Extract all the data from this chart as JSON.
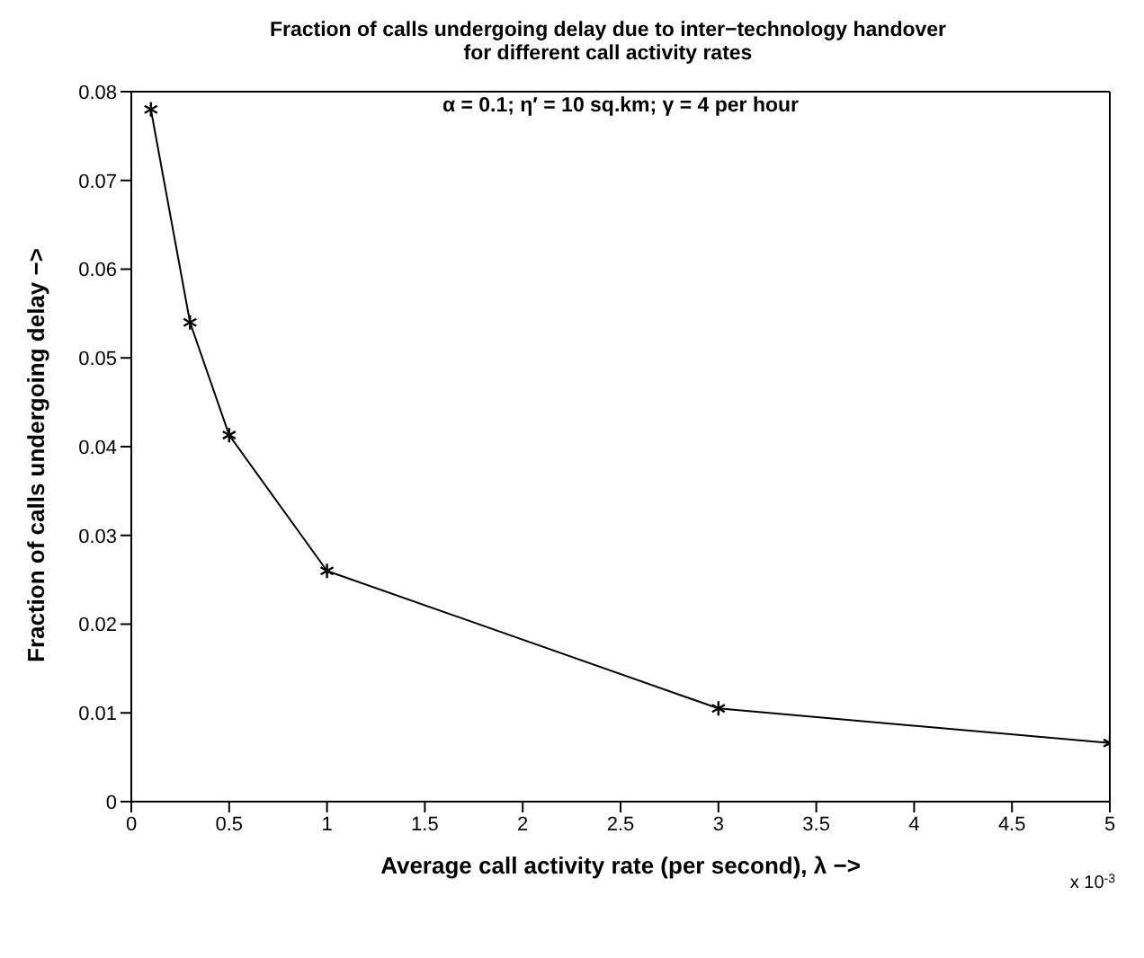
{
  "chart_data": {
    "type": "line",
    "title": "Fraction of calls undergoing delay due to inter−technology handover\nfor different call activity rates",
    "xlabel": "Average call activity rate (per second), λ −>",
    "ylabel": "Fraction of calls undergoing delay −>",
    "annotations": [
      "α = 0.1; η′ = 10 sq.km; γ =  4 per hour",
      "x 10$^{-3}$"
    ],
    "x": [
      0.1,
      0.3,
      0.5,
      1,
      3,
      5
    ],
    "series": [
      {
        "color": "#000000",
        "values": [
          0.078,
          0.054,
          0.0413,
          0.026,
          0.0105,
          0.0066
        ]
      }
    ],
    "xlim": [
      0,
      5
    ],
    "xticks": [
      0,
      0.5,
      1,
      1.5,
      2,
      2.5,
      3,
      3.5,
      4,
      4.5,
      5
    ],
    "ylim": [
      0,
      0.08
    ],
    "yticks": [
      0,
      0.01,
      0.02,
      0.03,
      0.04,
      0.05,
      0.06,
      0.07,
      0.08
    ],
    "grid": false,
    "legend": false,
    "marker": "cross",
    "line_style": "solid"
  }
}
